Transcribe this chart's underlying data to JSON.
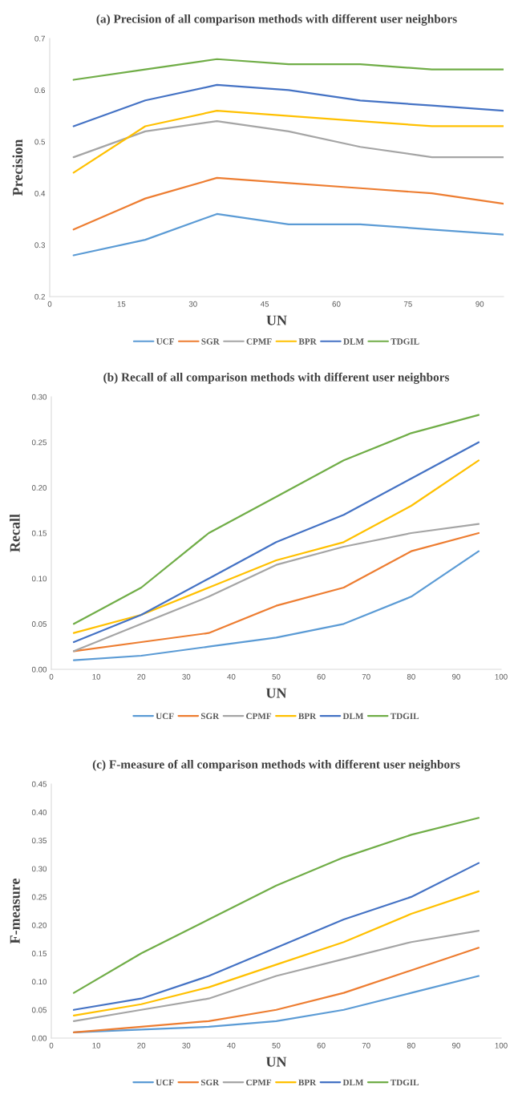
{
  "chart_data": [
    {
      "type": "line",
      "title": "(a) Precision of all comparison methods with different user neighbors",
      "xlabel": "UN",
      "ylabel": "Precision",
      "legend": "bottom",
      "x": [
        5,
        20,
        35,
        50,
        65,
        80,
        95
      ],
      "xlim": [
        0,
        95
      ],
      "xticks": [
        0,
        15,
        30,
        45,
        60,
        75,
        90
      ],
      "ylim": [
        0.2,
        0.7
      ],
      "yticks": [
        0.2,
        0.3,
        0.4,
        0.5,
        0.6,
        0.7
      ],
      "series": [
        {
          "name": "UCF",
          "color": "#5b9bd5",
          "values": [
            0.28,
            0.31,
            0.36,
            0.34,
            0.34,
            0.33,
            0.32
          ]
        },
        {
          "name": "SGR",
          "color": "#ed7d31",
          "values": [
            0.33,
            0.39,
            0.43,
            0.42,
            0.41,
            0.4,
            0.38
          ]
        },
        {
          "name": "CPMF",
          "color": "#a5a5a5",
          "values": [
            0.47,
            0.52,
            0.54,
            0.52,
            0.49,
            0.47,
            0.47
          ]
        },
        {
          "name": "BPR",
          "color": "#ffc000",
          "values": [
            0.44,
            0.53,
            0.56,
            0.55,
            0.54,
            0.53,
            0.53
          ]
        },
        {
          "name": "DLM",
          "color": "#4472c4",
          "values": [
            0.53,
            0.58,
            0.61,
            0.6,
            0.58,
            0.57,
            0.56
          ]
        },
        {
          "name": "TDGIL",
          "color": "#70ad47",
          "values": [
            0.62,
            0.64,
            0.66,
            0.65,
            0.65,
            0.64,
            0.64
          ]
        }
      ]
    },
    {
      "type": "line",
      "title": "(b) Recall of all comparison methods with different user neighbors",
      "xlabel": "UN",
      "ylabel": "Recall",
      "legend": "bottom",
      "x": [
        5,
        20,
        35,
        50,
        65,
        80,
        95
      ],
      "xlim": [
        0,
        100
      ],
      "xticks": [
        0,
        10,
        20,
        30,
        40,
        50,
        60,
        70,
        80,
        90,
        100
      ],
      "ylim": [
        0,
        0.3
      ],
      "yticks": [
        {
          "value": 0,
          "label": "0.00"
        },
        {
          "value": 0.05,
          "label": "0.05"
        },
        {
          "value": 0.1,
          "label": "0.10"
        },
        {
          "value": 0.15,
          "label": "0.15"
        },
        {
          "value": 0.2,
          "label": "0.20"
        },
        {
          "value": 0.25,
          "label": "0.25"
        },
        {
          "value": 0.3,
          "label": "0.30"
        }
      ],
      "series": [
        {
          "name": "UCF",
          "color": "#5b9bd5",
          "values": [
            0.01,
            0.015,
            0.025,
            0.035,
            0.05,
            0.08,
            0.13
          ]
        },
        {
          "name": "SGR",
          "color": "#ed7d31",
          "values": [
            0.02,
            0.03,
            0.04,
            0.07,
            0.09,
            0.13,
            0.15
          ]
        },
        {
          "name": "CPMF",
          "color": "#a5a5a5",
          "values": [
            0.02,
            0.05,
            0.08,
            0.115,
            0.135,
            0.15,
            0.16
          ]
        },
        {
          "name": "BPR",
          "color": "#ffc000",
          "values": [
            0.04,
            0.06,
            0.09,
            0.12,
            0.14,
            0.18,
            0.23
          ]
        },
        {
          "name": "DLM",
          "color": "#4472c4",
          "values": [
            0.03,
            0.06,
            0.1,
            0.14,
            0.17,
            0.21,
            0.25
          ]
        },
        {
          "name": "TDGIL",
          "color": "#70ad47",
          "values": [
            0.05,
            0.09,
            0.15,
            0.19,
            0.23,
            0.26,
            0.28
          ]
        }
      ]
    },
    {
      "type": "line",
      "title": "(c) F-measure of all comparison methods with different user neighbors",
      "xlabel": "UN",
      "ylabel": "F-measure",
      "legend": "bottom",
      "x": [
        5,
        20,
        35,
        50,
        65,
        80,
        95
      ],
      "xlim": [
        0,
        100
      ],
      "xticks": [
        0,
        10,
        20,
        30,
        40,
        50,
        60,
        70,
        80,
        90,
        100
      ],
      "ylim": [
        0,
        0.45
      ],
      "yticks": [
        {
          "value": 0,
          "label": "0.00"
        },
        {
          "value": 0.05,
          "label": "0.05"
        },
        {
          "value": 0.1,
          "label": "0.10"
        },
        {
          "value": 0.15,
          "label": "0.15"
        },
        {
          "value": 0.2,
          "label": "0.20"
        },
        {
          "value": 0.25,
          "label": "0.25"
        },
        {
          "value": 0.3,
          "label": "0.30"
        },
        {
          "value": 0.35,
          "label": "0.35"
        },
        {
          "value": 0.4,
          "label": "0.40"
        },
        {
          "value": 0.45,
          "label": "0.45"
        }
      ],
      "series": [
        {
          "name": "UCF",
          "color": "#5b9bd5",
          "values": [
            0.01,
            0.015,
            0.02,
            0.03,
            0.05,
            0.08,
            0.11
          ]
        },
        {
          "name": "SGR",
          "color": "#ed7d31",
          "values": [
            0.01,
            0.02,
            0.03,
            0.05,
            0.08,
            0.12,
            0.16
          ]
        },
        {
          "name": "CPMF",
          "color": "#a5a5a5",
          "values": [
            0.03,
            0.05,
            0.07,
            0.11,
            0.14,
            0.17,
            0.19
          ]
        },
        {
          "name": "BPR",
          "color": "#ffc000",
          "values": [
            0.04,
            0.06,
            0.09,
            0.13,
            0.17,
            0.22,
            0.26
          ]
        },
        {
          "name": "DLM",
          "color": "#4472c4",
          "values": [
            0.05,
            0.07,
            0.11,
            0.16,
            0.21,
            0.25,
            0.31
          ]
        },
        {
          "name": "TDGIL",
          "color": "#70ad47",
          "values": [
            0.08,
            0.15,
            0.21,
            0.27,
            0.32,
            0.36,
            0.39
          ]
        }
      ]
    }
  ]
}
